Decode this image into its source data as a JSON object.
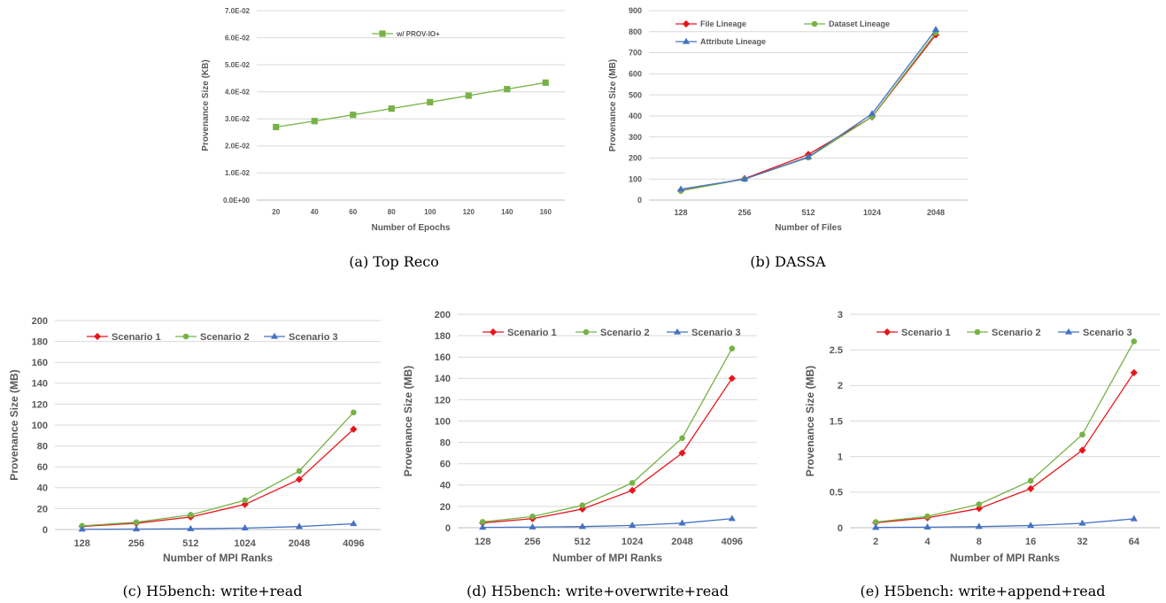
{
  "captions": {
    "a": "(a) Top Reco",
    "b": "(b) DASSA",
    "c": "(c) H5bench: write+read",
    "d": "(d) H5bench: write+overwrite+read",
    "e": "(e) H5bench: write+append+read"
  },
  "colors": {
    "red": "#e8141a",
    "green": "#77b246",
    "blue": "#4472c4",
    "grid": "#d9d9d9",
    "axis": "#bfbfbf",
    "text": "#595959"
  },
  "chart_data": [
    {
      "id": "a",
      "type": "line",
      "title": "",
      "xlabel": "Number of Epochs",
      "ylabel": "Provenance Size (KB)",
      "categories": [
        "20",
        "40",
        "60",
        "80",
        "100",
        "120",
        "140",
        "160"
      ],
      "yticks": [
        "0.0E+00",
        "1.0E-02",
        "2.0E-02",
        "3.0E-02",
        "4.0E-02",
        "5.0E-02",
        "6.0E-02",
        "7.0E-02"
      ],
      "ylim": [
        0,
        0.07
      ],
      "grid": true,
      "legend_position": "top-center",
      "series": [
        {
          "name": "w/ PROV-IO+",
          "color": "#77b246",
          "marker": "square",
          "values": [
            0.027,
            0.0292,
            0.0315,
            0.0338,
            0.0362,
            0.0386,
            0.041,
            0.0434
          ]
        }
      ]
    },
    {
      "id": "b",
      "type": "line",
      "title": "",
      "xlabel": "Number of Files",
      "ylabel": "Provenance Size (MB)",
      "categories": [
        "128",
        "256",
        "512",
        "1024",
        "2048"
      ],
      "yticks": [
        "0",
        "100",
        "200",
        "300",
        "400",
        "500",
        "600",
        "700",
        "800",
        "900"
      ],
      "ylim": [
        0,
        900
      ],
      "grid": true,
      "legend_position": "top-left",
      "series": [
        {
          "name": "File Lineage",
          "color": "#e8141a",
          "marker": "diamond",
          "values": [
            45,
            102,
            217,
            395,
            785
          ]
        },
        {
          "name": "Dataset Lineage",
          "color": "#77b246",
          "marker": "circle",
          "values": [
            44,
            100,
            202,
            396,
            795
          ]
        },
        {
          "name": "Attribute Lineage",
          "color": "#4472c4",
          "marker": "triangle",
          "values": [
            52,
            100,
            205,
            410,
            810
          ]
        }
      ]
    },
    {
      "id": "c",
      "type": "line",
      "title": "",
      "xlabel": "Number of MPI Ranks",
      "ylabel": "Provenance Size (MB)",
      "categories": [
        "128",
        "256",
        "512",
        "1024",
        "2048",
        "4096"
      ],
      "yticks": [
        "0",
        "20",
        "40",
        "60",
        "80",
        "100",
        "120",
        "140",
        "160",
        "180",
        "200"
      ],
      "ylim": [
        0,
        200
      ],
      "grid": true,
      "legend_position": "top",
      "series": [
        {
          "name": "Scenario 1",
          "color": "#e8141a",
          "marker": "diamond",
          "values": [
            3,
            6,
            12,
            24,
            48,
            96
          ]
        },
        {
          "name": "Scenario 2",
          "color": "#77b246",
          "marker": "circle",
          "values": [
            3.5,
            7,
            14,
            28,
            56,
            112
          ]
        },
        {
          "name": "Scenario 3",
          "color": "#4472c4",
          "marker": "triangle",
          "values": [
            0.2,
            0.4,
            0.7,
            1.4,
            2.8,
            5.5
          ]
        }
      ]
    },
    {
      "id": "d",
      "type": "line",
      "title": "",
      "xlabel": "Number of MPI Ranks",
      "ylabel": "Provenance Size (MB)",
      "categories": [
        "128",
        "256",
        "512",
        "1024",
        "2048",
        "4096"
      ],
      "yticks": [
        "0",
        "20",
        "40",
        "60",
        "80",
        "100",
        "120",
        "140",
        "160",
        "180",
        "200"
      ],
      "ylim": [
        0,
        200
      ],
      "grid": true,
      "legend_position": "top",
      "series": [
        {
          "name": "Scenario 1",
          "color": "#e8141a",
          "marker": "diamond",
          "values": [
            4.5,
            8.5,
            17.5,
            35,
            70,
            140
          ]
        },
        {
          "name": "Scenario 2",
          "color": "#77b246",
          "marker": "circle",
          "values": [
            5.5,
            10.5,
            21,
            42,
            84,
            168
          ]
        },
        {
          "name": "Scenario 3",
          "color": "#4472c4",
          "marker": "triangle",
          "values": [
            0.3,
            0.6,
            1.1,
            2.2,
            4.3,
            8.5
          ]
        }
      ]
    },
    {
      "id": "e",
      "type": "line",
      "title": "",
      "xlabel": "Number of MPI Ranks",
      "ylabel": "Provenance Size (MB)",
      "categories": [
        "2",
        "4",
        "8",
        "16",
        "32",
        "64"
      ],
      "yticks": [
        "0",
        "0.5",
        "1",
        "1.5",
        "2",
        "2.5",
        "3"
      ],
      "ylim": [
        0,
        3
      ],
      "grid": true,
      "legend_position": "top",
      "series": [
        {
          "name": "Scenario 1",
          "color": "#e8141a",
          "marker": "diamond",
          "values": [
            0.07,
            0.14,
            0.27,
            0.55,
            1.09,
            2.18
          ]
        },
        {
          "name": "Scenario 2",
          "color": "#77b246",
          "marker": "circle",
          "values": [
            0.08,
            0.16,
            0.33,
            0.66,
            1.31,
            2.62
          ]
        },
        {
          "name": "Scenario 3",
          "color": "#4472c4",
          "marker": "triangle",
          "values": [
            0.004,
            0.008,
            0.016,
            0.031,
            0.062,
            0.125
          ]
        }
      ]
    }
  ]
}
